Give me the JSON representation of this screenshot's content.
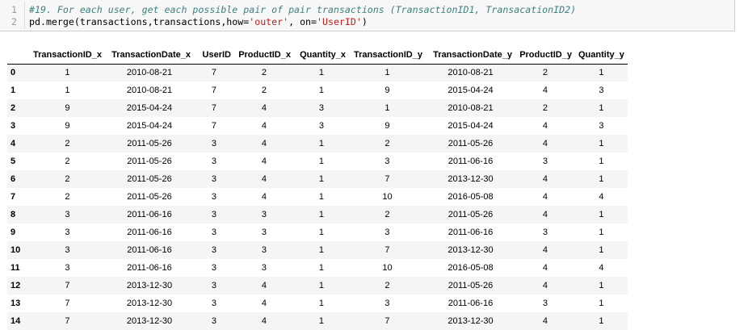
{
  "code": {
    "line1_no": "1",
    "line1_text": "#19. For each user, get each possible pair of pair transactions (TransactionID1, TransacationID2)",
    "line2_no": "2",
    "line2_pre": "pd.merge(transactions,transactions,how=",
    "line2_str1": "'outer'",
    "line2_mid": ", on=",
    "line2_str2": "'UserID'",
    "line2_post": ")"
  },
  "table": {
    "columns": [
      "TransactionID_x",
      "TransactionDate_x",
      "UserID",
      "ProductID_x",
      "Quantity_x",
      "TransactionID_y",
      "TransactionDate_y",
      "ProductID_y",
      "Quantity_y"
    ],
    "rows": [
      [
        "0",
        "1",
        "2010-08-21",
        "7",
        "2",
        "1",
        "1",
        "2010-08-21",
        "2",
        "1"
      ],
      [
        "1",
        "1",
        "2010-08-21",
        "7",
        "2",
        "1",
        "9",
        "2015-04-24",
        "4",
        "3"
      ],
      [
        "2",
        "9",
        "2015-04-24",
        "7",
        "4",
        "3",
        "1",
        "2010-08-21",
        "2",
        "1"
      ],
      [
        "3",
        "9",
        "2015-04-24",
        "7",
        "4",
        "3",
        "9",
        "2015-04-24",
        "4",
        "3"
      ],
      [
        "4",
        "2",
        "2011-05-26",
        "3",
        "4",
        "1",
        "2",
        "2011-05-26",
        "4",
        "1"
      ],
      [
        "5",
        "2",
        "2011-05-26",
        "3",
        "4",
        "1",
        "3",
        "2011-06-16",
        "3",
        "1"
      ],
      [
        "6",
        "2",
        "2011-05-26",
        "3",
        "4",
        "1",
        "7",
        "2013-12-30",
        "4",
        "1"
      ],
      [
        "7",
        "2",
        "2011-05-26",
        "3",
        "4",
        "1",
        "10",
        "2016-05-08",
        "4",
        "4"
      ],
      [
        "8",
        "3",
        "2011-06-16",
        "3",
        "3",
        "1",
        "2",
        "2011-05-26",
        "4",
        "1"
      ],
      [
        "9",
        "3",
        "2011-06-16",
        "3",
        "3",
        "1",
        "3",
        "2011-06-16",
        "3",
        "1"
      ],
      [
        "10",
        "3",
        "2011-06-16",
        "3",
        "3",
        "1",
        "7",
        "2013-12-30",
        "4",
        "1"
      ],
      [
        "11",
        "3",
        "2011-06-16",
        "3",
        "3",
        "1",
        "10",
        "2016-05-08",
        "4",
        "4"
      ],
      [
        "12",
        "7",
        "2013-12-30",
        "3",
        "4",
        "1",
        "2",
        "2011-05-26",
        "4",
        "1"
      ],
      [
        "13",
        "7",
        "2013-12-30",
        "3",
        "4",
        "1",
        "3",
        "2011-06-16",
        "3",
        "1"
      ],
      [
        "14",
        "7",
        "2013-12-30",
        "3",
        "4",
        "1",
        "7",
        "2013-12-30",
        "4",
        "1"
      ]
    ]
  }
}
